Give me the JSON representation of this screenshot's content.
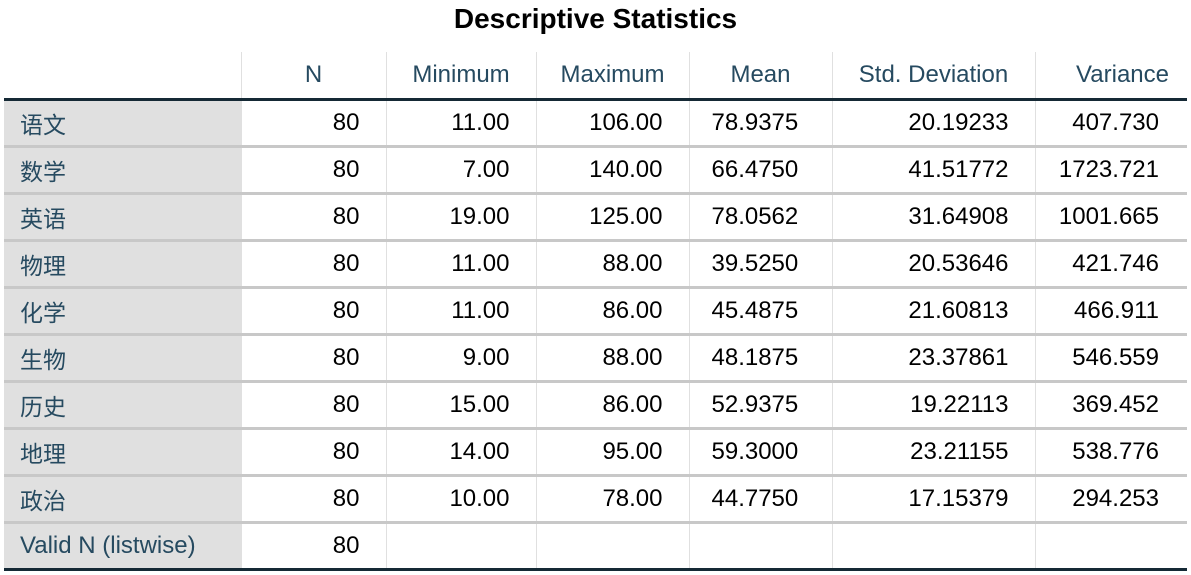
{
  "title": "Descriptive Statistics",
  "columns": [
    "",
    "N",
    "Minimum",
    "Maximum",
    "Mean",
    "Std. Deviation",
    "Variance"
  ],
  "rows": [
    {
      "label": "语文",
      "n": "80",
      "minimum": "11.00",
      "maximum": "106.00",
      "mean": "78.9375",
      "std": "20.19233",
      "variance": "407.730"
    },
    {
      "label": "数学",
      "n": "80",
      "minimum": "7.00",
      "maximum": "140.00",
      "mean": "66.4750",
      "std": "41.51772",
      "variance": "1723.721"
    },
    {
      "label": "英语",
      "n": "80",
      "minimum": "19.00",
      "maximum": "125.00",
      "mean": "78.0562",
      "std": "31.64908",
      "variance": "1001.665"
    },
    {
      "label": "物理",
      "n": "80",
      "minimum": "11.00",
      "maximum": "88.00",
      "mean": "39.5250",
      "std": "20.53646",
      "variance": "421.746"
    },
    {
      "label": "化学",
      "n": "80",
      "minimum": "11.00",
      "maximum": "86.00",
      "mean": "45.4875",
      "std": "21.60813",
      "variance": "466.911"
    },
    {
      "label": "生物",
      "n": "80",
      "minimum": "9.00",
      "maximum": "88.00",
      "mean": "48.1875",
      "std": "23.37861",
      "variance": "546.559"
    },
    {
      "label": "历史",
      "n": "80",
      "minimum": "15.00",
      "maximum": "86.00",
      "mean": "52.9375",
      "std": "19.22113",
      "variance": "369.452"
    },
    {
      "label": "地理",
      "n": "80",
      "minimum": "14.00",
      "maximum": "95.00",
      "mean": "59.3000",
      "std": "23.21155",
      "variance": "538.776"
    },
    {
      "label": "政治",
      "n": "80",
      "minimum": "10.00",
      "maximum": "78.00",
      "mean": "44.7750",
      "std": "17.15379",
      "variance": "294.253"
    },
    {
      "label": "Valid N (listwise)",
      "n": "80",
      "minimum": "",
      "maximum": "",
      "mean": "",
      "std": "",
      "variance": ""
    }
  ],
  "colors": {
    "header_text": "#264a60",
    "row_label_bg": "#e0e0e0",
    "heavy_rule": "#152935",
    "light_rule": "#c8c8c8"
  }
}
